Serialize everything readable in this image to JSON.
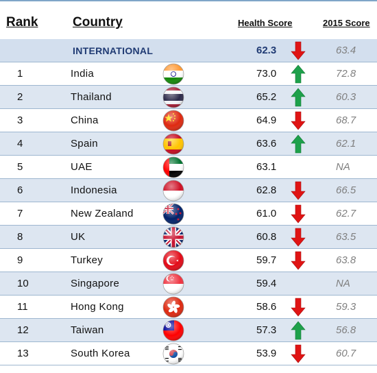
{
  "headers": {
    "rank": "Rank",
    "country": "Country",
    "health_score": "Health Score",
    "score_2015": "2015 Score"
  },
  "colors": {
    "up": "#1ea14b",
    "down": "#e01414",
    "header_row": "#d3dfee",
    "alt_row": "#dde6f1",
    "rule": "#9db6cf"
  },
  "international": {
    "label": "INTERNATIONAL",
    "score": "62.3",
    "trend": "down",
    "prev": "63.4"
  },
  "rows": [
    {
      "rank": "1",
      "country": "India",
      "flag": "india-flag-icon",
      "score": "73.0",
      "trend": "up",
      "prev": "72.8"
    },
    {
      "rank": "2",
      "country": "Thailand",
      "flag": "thailand-flag-icon",
      "score": "65.2",
      "trend": "up",
      "prev": "60.3"
    },
    {
      "rank": "3",
      "country": "China",
      "flag": "china-flag-icon",
      "score": "64.9",
      "trend": "down",
      "prev": "68.7"
    },
    {
      "rank": "4",
      "country": "Spain",
      "flag": "spain-flag-icon",
      "score": "63.6",
      "trend": "up",
      "prev": "62.1"
    },
    {
      "rank": "5",
      "country": "UAE",
      "flag": "uae-flag-icon",
      "score": "63.1",
      "trend": "none",
      "prev": "NA"
    },
    {
      "rank": "6",
      "country": "Indonesia",
      "flag": "indonesia-flag-icon",
      "score": "62.8",
      "trend": "down",
      "prev": "66.5"
    },
    {
      "rank": "7",
      "country": "New Zealand",
      "flag": "new-zealand-flag-icon",
      "score": "61.0",
      "trend": "down",
      "prev": "62.7"
    },
    {
      "rank": "8",
      "country": "UK",
      "flag": "uk-flag-icon",
      "score": "60.8",
      "trend": "down",
      "prev": "63.5"
    },
    {
      "rank": "9",
      "country": "Turkey",
      "flag": "turkey-flag-icon",
      "score": "59.7",
      "trend": "down",
      "prev": "63.8"
    },
    {
      "rank": "10",
      "country": "Singapore",
      "flag": "singapore-flag-icon",
      "score": "59.4",
      "trend": "none",
      "prev": "NA"
    },
    {
      "rank": "11",
      "country": "Hong Kong",
      "flag": "hong-kong-flag-icon",
      "score": "58.6",
      "trend": "down",
      "prev": "59.3"
    },
    {
      "rank": "12",
      "country": "Taiwan",
      "flag": "taiwan-flag-icon",
      "score": "57.3",
      "trend": "up",
      "prev": "56.8"
    },
    {
      "rank": "13",
      "country": "South Korea",
      "flag": "south-korea-flag-icon",
      "score": "53.9",
      "trend": "down",
      "prev": "60.7"
    }
  ]
}
